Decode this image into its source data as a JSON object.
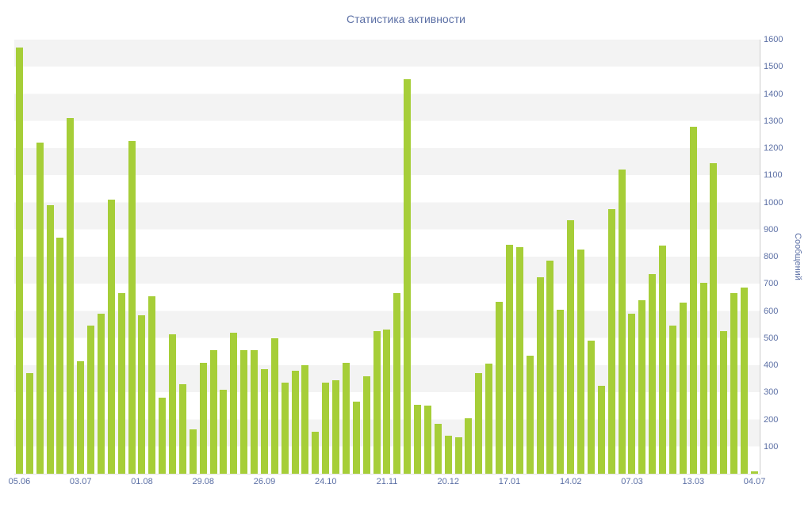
{
  "chart_data": {
    "type": "bar",
    "title": "Статистика активности",
    "xlabel": "",
    "ylabel": "Сообщений",
    "ylim": [
      0,
      1600
    ],
    "y_ticks": [
      100,
      200,
      300,
      400,
      500,
      600,
      700,
      800,
      900,
      1000,
      1100,
      1200,
      1300,
      1400,
      1500,
      1600
    ],
    "x_tick_labels": [
      "05.06",
      "03.07",
      "01.08",
      "29.08",
      "26.09",
      "24.10",
      "21.11",
      "20.12",
      "17.01",
      "14.02",
      "07.03",
      "13.03",
      "04.07"
    ],
    "x_label_every_n_bars": 6,
    "grid": "striped-bands-100",
    "legend": "none",
    "bar_color": "#a6ce38",
    "text_color": "#5b6fa5",
    "stripe_color": "#f3f3f3",
    "values": [
      1570,
      370,
      1220,
      990,
      870,
      1310,
      415,
      545,
      590,
      1010,
      665,
      1225,
      585,
      655,
      280,
      515,
      330,
      165,
      410,
      455,
      310,
      520,
      455,
      455,
      385,
      500,
      335,
      380,
      400,
      155,
      335,
      345,
      410,
      265,
      360,
      525,
      530,
      665,
      1455,
      255,
      250,
      185,
      140,
      135,
      205,
      370,
      405,
      635,
      845,
      835,
      435,
      725,
      785,
      605,
      935,
      825,
      490,
      325,
      975,
      1120,
      590,
      640,
      735,
      840,
      545,
      630,
      1280,
      705,
      1145,
      525,
      665,
      685,
      10
    ]
  }
}
